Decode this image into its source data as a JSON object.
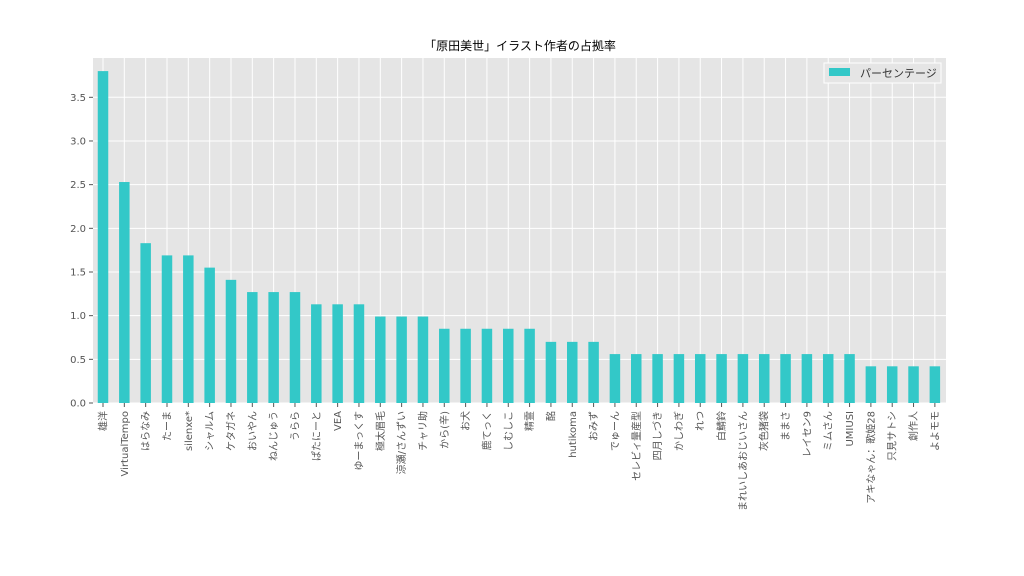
{
  "chart_data": {
    "type": "bar",
    "title": "「原田美世」イラスト作者の占拠率",
    "xlabel": "",
    "ylabel": "",
    "ylim": [
      0,
      3.95
    ],
    "yticks": [
      "0.0",
      "0.5",
      "1.0",
      "1.5",
      "2.0",
      "2.5",
      "3.0",
      "3.5"
    ],
    "grid": true,
    "legend_position": "top-right",
    "categories": [
      "雄洋",
      "VirtualTempo",
      "はらなみ",
      "たーま",
      "silenxe*",
      "シャルム",
      "ケタガネ",
      "おいやん",
      "ねんじゅう",
      "うらら",
      "ぱたにーと",
      "VEA",
      "ゆーまっくす",
      "極太眉毛",
      "涼瀬/さんずい",
      "チャリ助",
      "から(辛)",
      "お犬",
      "鹿てっく",
      "しむしこ",
      "精霊",
      "酩",
      "hutikoma",
      "おみず",
      "でゅーん",
      "セレビィ量産型",
      "四月しづき",
      "かしわぎ",
      "れつ",
      "白鯖鈴",
      "まれいしあおじいさん",
      "灰色猪袋",
      "ままさ",
      "レイセン9",
      "ミムさん",
      "UMIUSI",
      "アキなゃん：歌姫28",
      "只見サトシ",
      "創作人",
      "よよモモ"
    ],
    "series": [
      {
        "name": "パーセンテージ",
        "color": "#33c8c8",
        "values": [
          3.8,
          2.53,
          1.83,
          1.69,
          1.69,
          1.55,
          1.41,
          1.27,
          1.27,
          1.27,
          1.13,
          1.13,
          1.13,
          0.99,
          0.99,
          0.99,
          0.85,
          0.85,
          0.85,
          0.85,
          0.85,
          0.7,
          0.7,
          0.7,
          0.56,
          0.56,
          0.56,
          0.56,
          0.56,
          0.56,
          0.56,
          0.56,
          0.56,
          0.56,
          0.56,
          0.56,
          0.42,
          0.42,
          0.42,
          0.42
        ]
      }
    ]
  }
}
